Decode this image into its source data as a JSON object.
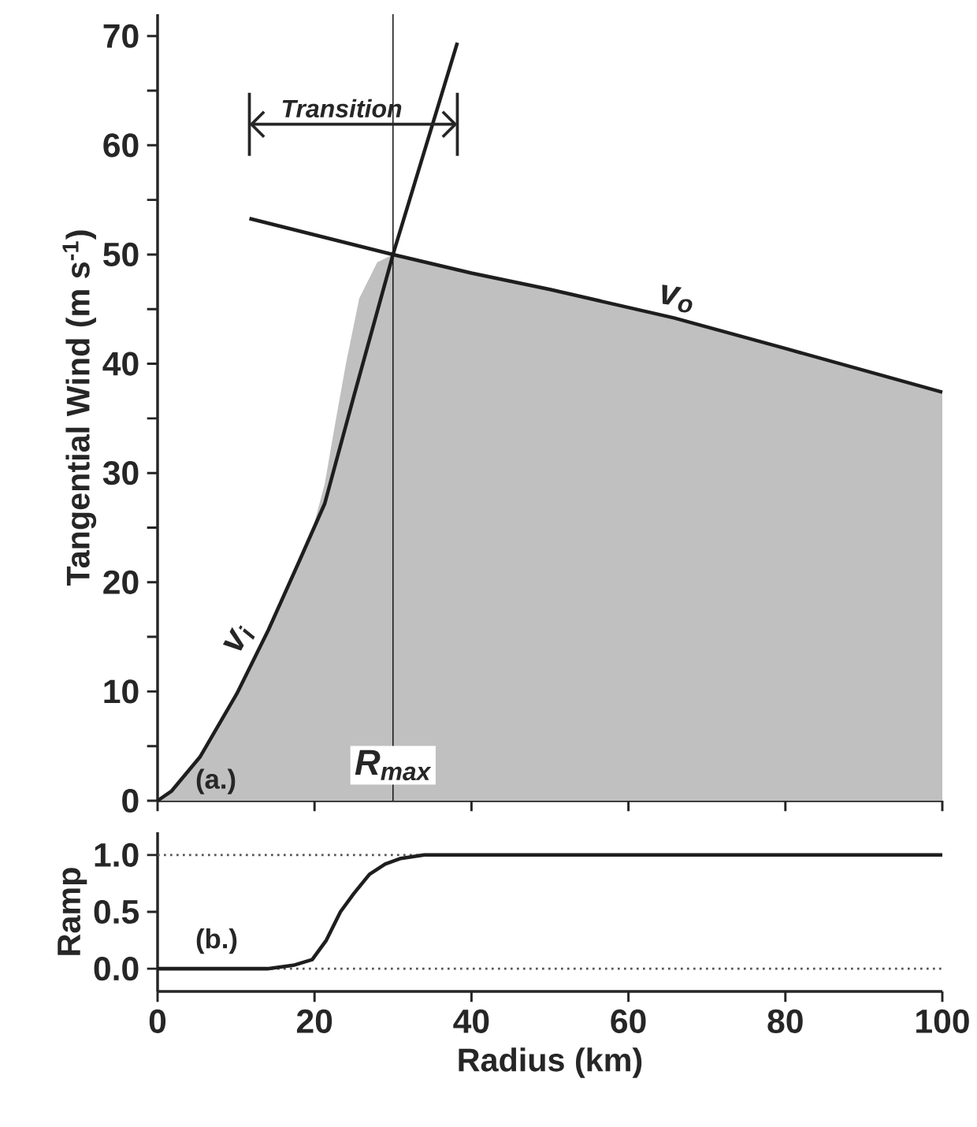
{
  "chart_data": [
    {
      "type": "line",
      "ylabel": "Tangential Wind (m s$^{-1}$)",
      "xlim": [
        0,
        100
      ],
      "ylim": [
        0,
        72
      ],
      "xticks": [
        0,
        20,
        40,
        60,
        80,
        100
      ],
      "yticks": [
        0,
        {
          "value": 5,
          "label": null
        },
        10,
        {
          "value": 15,
          "label": null
        },
        20,
        {
          "value": 25,
          "label": null
        },
        30,
        {
          "value": 35,
          "label": null
        },
        40,
        {
          "value": 45,
          "label": null
        },
        50,
        {
          "value": 55,
          "label": null
        },
        60,
        {
          "value": 65,
          "label": null
        },
        70
      ],
      "tick_labels": "y",
      "series": [
        {
          "type": "area",
          "color": "#c0c0c0",
          "x": [
            0,
            1.8,
            5.4,
            10.1,
            14.1,
            18.1,
            20,
            21.3,
            22.5,
            24,
            25.7,
            28,
            30,
            40,
            50,
            65.8,
            80,
            100
          ],
          "values": [
            0,
            0.9,
            4,
            9.8,
            15.6,
            22,
            25.5,
            29,
            34,
            40,
            46,
            49.3,
            50,
            48.3,
            46.8,
            44.2,
            41.4,
            37.4
          ]
        },
        {
          "name": "v$_{i}$",
          "color": "#1e1e1e",
          "x": [
            0,
            1.8,
            5.4,
            10.1,
            14.1,
            18.1,
            21.3,
            25,
            30,
            38.2
          ],
          "values": [
            0,
            0.9,
            4,
            9.8,
            15.6,
            22,
            27.2,
            37,
            50,
            69.4
          ]
        },
        {
          "name": "v$_{o}$",
          "color": "#1e1e1e",
          "x": [
            11.7,
            30,
            40,
            50,
            65.8,
            80,
            100
          ],
          "values": [
            53.3,
            50,
            48.3,
            46.8,
            44.2,
            41.4,
            37.4
          ]
        }
      ],
      "ref_lines": [
        {
          "axis": "x",
          "value": 30,
          "label": "R$_{max}$",
          "color": "#1e1e1e"
        }
      ],
      "annotations": [
        "Transition",
        "(a.)"
      ]
    },
    {
      "type": "line",
      "xlabel": "Radius (km)",
      "ylabel": "Ramp",
      "xlim": [
        0,
        100
      ],
      "ylim": [
        -0.2,
        1.2
      ],
      "xticks": [
        0,
        20,
        40,
        60,
        80,
        100
      ],
      "yticks": [
        {
          "value": 0,
          "label": "0.0"
        },
        {
          "value": 0.5,
          "label": "0.5"
        },
        {
          "value": 1,
          "label": "1.0"
        }
      ],
      "series": [
        {
          "color": "#1e1e1e",
          "x": [
            0,
            10,
            14,
            17.3,
            19.7,
            21.5,
            23.3,
            25,
            27,
            29,
            31,
            34,
            100
          ],
          "values": [
            0,
            0,
            0,
            0.03,
            0.08,
            0.25,
            0.5,
            0.66,
            0.83,
            0.92,
            0.97,
            1,
            1
          ]
        }
      ],
      "ref_lines": [
        {
          "axis": "y",
          "value": 0,
          "line_style": "dotted",
          "color": "#555555"
        },
        {
          "axis": "y",
          "value": 1,
          "line_style": "dotted",
          "color": "#555555"
        }
      ],
      "annotations": [
        "(b.)"
      ]
    }
  ]
}
